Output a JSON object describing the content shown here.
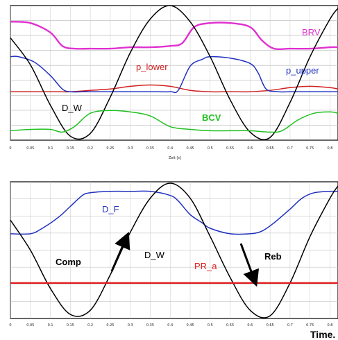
{
  "chart_data": [
    {
      "type": "line",
      "xlabel": "Zeit [s]",
      "xlim": [
        0,
        0.82
      ],
      "x_ticks": [
        "0",
        "0.05",
        "0.1",
        "0.15",
        "0.2",
        "0.25",
        "0.3",
        "0.35",
        "0.4",
        "0.45",
        "0.5",
        "0.55",
        "0.6",
        "0.65",
        "0.7",
        "0.75",
        "0.8"
      ],
      "grid": true,
      "series": [
        {
          "name": "BRV",
          "color": "#e030d0",
          "x": [
            0,
            0.05,
            0.1,
            0.13,
            0.16,
            0.2,
            0.25,
            0.3,
            0.35,
            0.4,
            0.43,
            0.46,
            0.5,
            0.55,
            0.6,
            0.63,
            0.66,
            0.7,
            0.75,
            0.8,
            0.82
          ],
          "y": [
            0.88,
            0.87,
            0.8,
            0.7,
            0.68,
            0.68,
            0.68,
            0.69,
            0.69,
            0.7,
            0.72,
            0.84,
            0.87,
            0.87,
            0.84,
            0.74,
            0.68,
            0.68,
            0.68,
            0.69,
            0.69
          ]
        },
        {
          "name": "p_lower",
          "color": "#d02020",
          "x": [
            0,
            0.1,
            0.15,
            0.2,
            0.25,
            0.3,
            0.35,
            0.4,
            0.45,
            0.5,
            0.55,
            0.6,
            0.65,
            0.7,
            0.75,
            0.8,
            0.82
          ],
          "y": [
            0.36,
            0.36,
            0.36,
            0.37,
            0.38,
            0.4,
            0.41,
            0.4,
            0.37,
            0.36,
            0.36,
            0.36,
            0.37,
            0.39,
            0.4,
            0.39,
            0.38
          ]
        },
        {
          "name": "p_upper",
          "color": "#2030c0",
          "x": [
            0,
            0.02,
            0.06,
            0.1,
            0.13,
            0.15,
            0.18,
            0.2,
            0.25,
            0.3,
            0.35,
            0.4,
            0.42,
            0.45,
            0.48,
            0.5,
            0.55,
            0.6,
            0.62,
            0.64,
            0.67,
            0.7,
            0.75,
            0.8,
            0.82
          ],
          "y": [
            0.62,
            0.62,
            0.58,
            0.48,
            0.38,
            0.36,
            0.36,
            0.36,
            0.36,
            0.36,
            0.36,
            0.36,
            0.37,
            0.55,
            0.6,
            0.62,
            0.61,
            0.57,
            0.5,
            0.38,
            0.36,
            0.36,
            0.36,
            0.36,
            0.36
          ]
        },
        {
          "name": "D_W",
          "color": "#000000",
          "x": [
            0,
            0.05,
            0.1,
            0.15,
            0.2,
            0.25,
            0.3,
            0.35,
            0.4,
            0.45,
            0.5,
            0.55,
            0.6,
            0.65,
            0.7,
            0.75,
            0.8,
            0.82
          ],
          "y": [
            0.76,
            0.56,
            0.26,
            0.03,
            0.05,
            0.32,
            0.65,
            0.9,
            1.0,
            0.88,
            0.62,
            0.3,
            0.06,
            0.02,
            0.28,
            0.62,
            0.9,
            0.98
          ]
        },
        {
          "name": "BCV",
          "color": "#20c020",
          "x": [
            0,
            0.05,
            0.1,
            0.13,
            0.16,
            0.2,
            0.25,
            0.3,
            0.35,
            0.4,
            0.45,
            0.5,
            0.55,
            0.6,
            0.65,
            0.68,
            0.72,
            0.76,
            0.8,
            0.82
          ],
          "y": [
            0.07,
            0.08,
            0.08,
            0.06,
            0.1,
            0.2,
            0.22,
            0.21,
            0.18,
            0.1,
            0.08,
            0.07,
            0.07,
            0.07,
            0.06,
            0.07,
            0.15,
            0.2,
            0.21,
            0.2
          ]
        }
      ]
    },
    {
      "type": "line",
      "xlim": [
        0,
        0.82
      ],
      "x_ticks": [
        "0",
        "0.05",
        "0.1",
        "0.15",
        "0.2",
        "0.25",
        "0.3",
        "0.35",
        "0.4",
        "0.45",
        "0.5",
        "0.55",
        "0.6",
        "0.65",
        "0.7",
        "0.75",
        "0.8"
      ],
      "grid": true,
      "series": [
        {
          "name": "D_F",
          "color": "#2030c0",
          "x": [
            0,
            0.05,
            0.08,
            0.12,
            0.15,
            0.18,
            0.2,
            0.25,
            0.3,
            0.35,
            0.4,
            0.42,
            0.45,
            0.48,
            0.5,
            0.55,
            0.6,
            0.63,
            0.66,
            0.7,
            0.73,
            0.76,
            0.8,
            0.82
          ],
          "y": [
            0.62,
            0.62,
            0.66,
            0.74,
            0.82,
            0.9,
            0.92,
            0.93,
            0.93,
            0.93,
            0.9,
            0.86,
            0.76,
            0.7,
            0.66,
            0.62,
            0.62,
            0.64,
            0.7,
            0.8,
            0.88,
            0.92,
            0.93,
            0.93
          ]
        },
        {
          "name": "D_W",
          "color": "#000000",
          "x": [
            0,
            0.05,
            0.1,
            0.15,
            0.2,
            0.25,
            0.3,
            0.35,
            0.4,
            0.45,
            0.5,
            0.55,
            0.6,
            0.65,
            0.7,
            0.75,
            0.8,
            0.82
          ],
          "y": [
            0.72,
            0.5,
            0.22,
            0.03,
            0.06,
            0.32,
            0.63,
            0.88,
            0.99,
            0.88,
            0.6,
            0.3,
            0.06,
            0.02,
            0.26,
            0.6,
            0.88,
            0.97
          ]
        },
        {
          "name": "PR_a",
          "color": "#e02020",
          "x": [
            0,
            0.1,
            0.2,
            0.3,
            0.4,
            0.5,
            0.6,
            0.7,
            0.8,
            0.82
          ],
          "y": [
            0.26,
            0.26,
            0.26,
            0.26,
            0.26,
            0.26,
            0.26,
            0.26,
            0.26,
            0.26
          ]
        }
      ],
      "annotations": [
        "Comp",
        "Reb"
      ]
    }
  ],
  "labels": {
    "top": {
      "brv": "BRV",
      "p_lower": "p_lower",
      "p_upper": "p_upper",
      "d_w": "D_W",
      "bcv": "BCV"
    },
    "bottom": {
      "d_f": "D_F",
      "d_w": "D_W",
      "pr_a": "PR_a",
      "comp": "Comp",
      "reb": "Reb"
    },
    "time": "Time."
  }
}
